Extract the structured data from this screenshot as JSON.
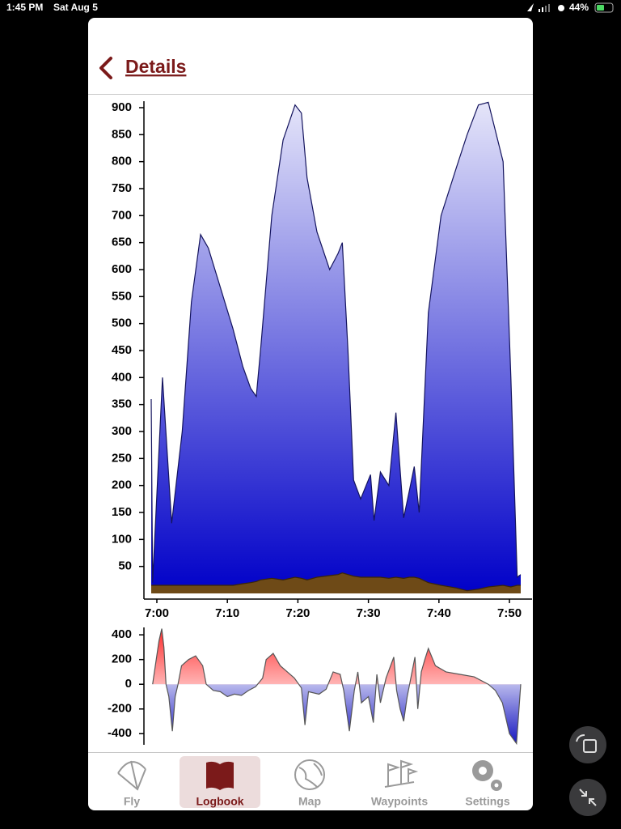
{
  "status_bar": {
    "time": "1:45 PM",
    "date": "Sat Aug 5",
    "battery": "44%"
  },
  "header": {
    "title": "Details"
  },
  "chart_data": [
    {
      "type": "area",
      "x": [
        419.2,
        419.4,
        420.8,
        422.1,
        423.6,
        424.9,
        426.2,
        427.3,
        428.7,
        430.8,
        432.2,
        433.3,
        434.1,
        434.7,
        436.3,
        437.9,
        439.6,
        440.5,
        441.3,
        442.7,
        444.5,
        445.7,
        446.3,
        447.1,
        447.9,
        448.9,
        450.3,
        450.8,
        451.7,
        452.9,
        453.9,
        455,
        455.8,
        456.5,
        457.2,
        458.5,
        460.3,
        462.5,
        464,
        465.6,
        467,
        469.1,
        470.2,
        471.1,
        471.6
      ],
      "series": [
        {
          "color": "#0000c8",
          "line_color": "#14145e",
          "fill": "gradient",
          "values": [
            360,
            20,
            400,
            130,
            300,
            540,
            665,
            640,
            580,
            490,
            420,
            380,
            365,
            450,
            700,
            840,
            905,
            890,
            770,
            670,
            600,
            630,
            650,
            450,
            210,
            175,
            220,
            135,
            225,
            200,
            335,
            140,
            190,
            235,
            150,
            520,
            700,
            790,
            850,
            905,
            910,
            800,
            400,
            30,
            35
          ]
        },
        {
          "color": "#6e4a17",
          "line_color": "#3a2608",
          "fill": "solid",
          "values": [
            15,
            15,
            15,
            15,
            15,
            15,
            15,
            15,
            15,
            15,
            18,
            20,
            22,
            25,
            28,
            25,
            30,
            28,
            25,
            30,
            33,
            35,
            38,
            35,
            32,
            30,
            30,
            30,
            30,
            28,
            30,
            28,
            30,
            30,
            28,
            20,
            15,
            10,
            5,
            8,
            12,
            15,
            12,
            15,
            15
          ]
        }
      ],
      "xlim": [
        419.2,
        471.6
      ],
      "xticks": [
        {
          "value": 420,
          "label": "7:00"
        },
        {
          "value": 430,
          "label": "7:10"
        },
        {
          "value": 440,
          "label": "7:20"
        },
        {
          "value": 450,
          "label": "7:30"
        },
        {
          "value": 460,
          "label": "7:40"
        },
        {
          "value": 470,
          "label": "7:50"
        }
      ],
      "ylim": [
        0,
        912
      ],
      "yticks": [
        50,
        100,
        150,
        200,
        250,
        300,
        350,
        400,
        450,
        500,
        550,
        600,
        650,
        700,
        750,
        800,
        850,
        900
      ]
    },
    {
      "type": "area",
      "x": [
        419.4,
        420.3,
        420.7,
        421,
        421.3,
        421.7,
        422.2,
        422.6,
        423,
        423.5,
        424.5,
        425.5,
        426.5,
        427,
        428,
        429,
        430,
        431,
        432,
        433,
        434,
        435,
        435.5,
        436.5,
        437.5,
        438.5,
        439.5,
        440.5,
        441,
        441.5,
        443,
        444,
        445,
        446,
        446.5,
        447.3,
        448,
        448.5,
        449,
        450,
        450.7,
        451.2,
        451.7,
        452.5,
        453.6,
        454,
        454.5,
        455,
        455.5,
        456.6,
        457,
        457.5,
        458,
        458.5,
        459.5,
        461,
        463,
        465,
        467,
        468,
        469,
        470,
        471,
        471.6
      ],
      "series": [
        {
          "color": "#1414c0",
          "positive_color": "#ff2a2a",
          "line_color": "#555555",
          "fill": "gradient",
          "values": [
            0,
            350,
            450,
            300,
            0,
            -100,
            -380,
            -100,
            0,
            150,
            200,
            230,
            150,
            0,
            -50,
            -60,
            -100,
            -80,
            -90,
            -50,
            -20,
            50,
            200,
            250,
            150,
            100,
            50,
            -30,
            -330,
            -60,
            -80,
            -40,
            100,
            80,
            -50,
            -380,
            -50,
            100,
            -150,
            -100,
            -310,
            80,
            -150,
            50,
            220,
            -50,
            -200,
            -300,
            -100,
            220,
            -200,
            100,
            200,
            290,
            150,
            100,
            80,
            60,
            0,
            -50,
            -150,
            -400,
            -480,
            0
          ]
        }
      ],
      "xlim": [
        419.2,
        471.6
      ],
      "ylim": [
        -490,
        460
      ],
      "yticks": [
        400,
        200,
        0,
        -200,
        -400
      ]
    }
  ],
  "tab_bar": {
    "items": [
      "Fly",
      "Logbook",
      "Map",
      "Waypoints",
      "Settings"
    ],
    "selected_index": 1
  }
}
